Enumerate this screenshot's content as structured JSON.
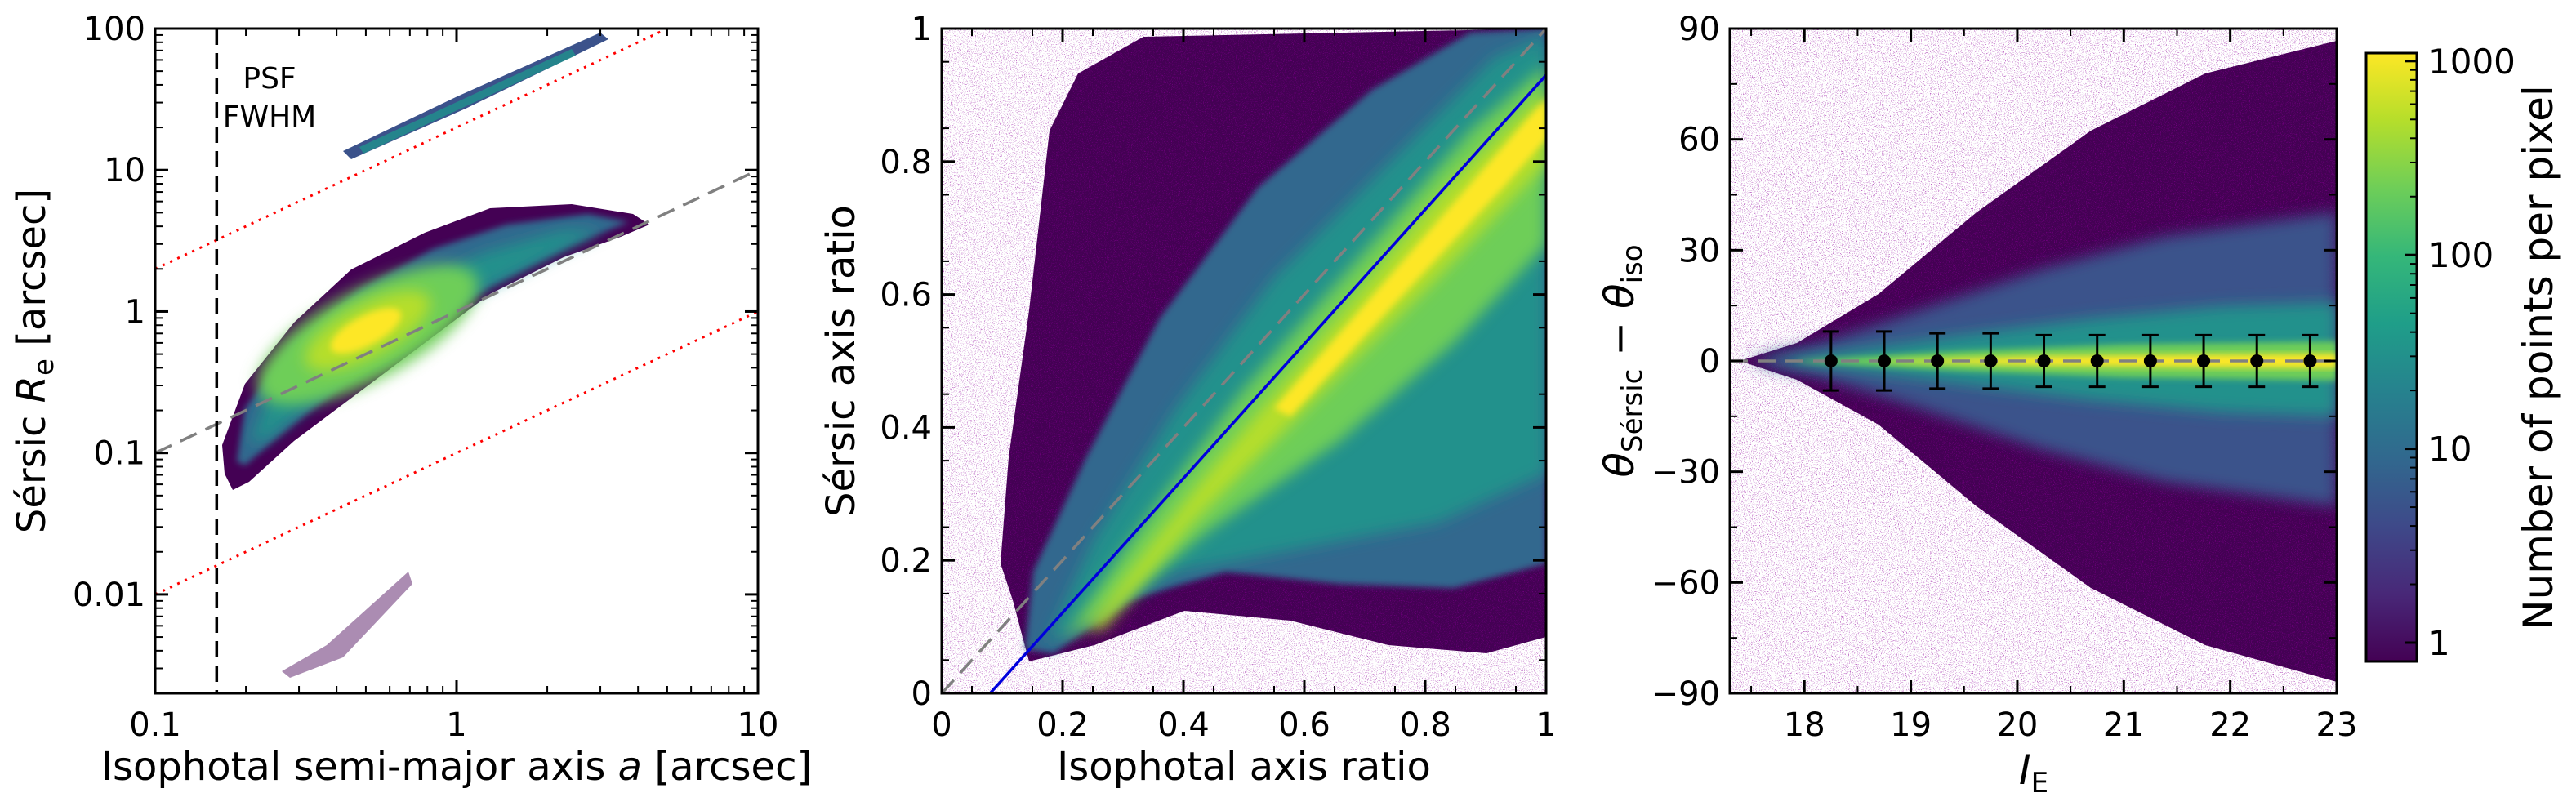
{
  "chart_data": [
    {
      "type": "heatmap",
      "panel": "left",
      "xlabel_parts": [
        "Isophotal semi-major axis ",
        "a",
        " [arcsec]"
      ],
      "ylabel_parts": [
        "Sérsic ",
        "R",
        "e",
        " [arcsec]"
      ],
      "x_scale": "log",
      "y_scale": "log",
      "xlim": [
        0.1,
        10
      ],
      "ylim": [
        0.002,
        100
      ],
      "x_ticks": [
        0.1,
        1,
        10
      ],
      "x_tick_labels": [
        "0.1",
        "1",
        "10"
      ],
      "y_ticks": [
        0.01,
        0.1,
        1,
        10,
        100
      ],
      "y_tick_labels": [
        "0.01",
        "0.1",
        "1",
        "10",
        "100"
      ],
      "annotation_lines": [
        "PSF",
        "FWHM"
      ],
      "psf_fwhm_a": 0.16,
      "lines": [
        {
          "style": "dashed",
          "color": "#808080",
          "relation": "y = x"
        },
        {
          "style": "dotted",
          "color": "#ff0000",
          "relation": "y = 20x"
        },
        {
          "style": "dotted",
          "color": "#ff0000",
          "relation": "y = 0.1x"
        }
      ],
      "density_ridge": {
        "x": [
          0.18,
          0.3,
          0.5,
          0.8,
          1.2,
          2.0,
          3.0
        ],
        "y": [
          0.1,
          0.3,
          0.5,
          0.9,
          1.4,
          2.4,
          4.0
        ]
      }
    },
    {
      "type": "heatmap",
      "panel": "middle",
      "xlabel": "Isophotal axis ratio",
      "ylabel": "Sérsic axis ratio",
      "xlim": [
        0,
        1
      ],
      "ylim": [
        0,
        1
      ],
      "x_ticks": [
        0,
        0.2,
        0.4,
        0.6,
        0.8,
        1
      ],
      "x_tick_labels": [
        "0",
        "0.2",
        "0.4",
        "0.6",
        "0.8",
        "1"
      ],
      "y_ticks": [
        0,
        0.2,
        0.4,
        0.6,
        0.8,
        1
      ],
      "y_tick_labels": [
        "0",
        "0.2",
        "0.4",
        "0.6",
        "0.8",
        "1"
      ],
      "lines": [
        {
          "style": "dashed",
          "color": "#808080",
          "points": [
            [
              0,
              0
            ],
            [
              1,
              1
            ]
          ]
        },
        {
          "style": "solid",
          "color": "#0000dd",
          "points": [
            [
              0.08,
              0
            ],
            [
              1,
              0.93
            ]
          ]
        }
      ]
    },
    {
      "type": "heatmap",
      "panel": "right",
      "xlabel_parts": [
        "I",
        "E"
      ],
      "ylabel_parts": [
        "θ",
        "Sérsic",
        " − ",
        "θ",
        "iso"
      ],
      "xlim": [
        17.3,
        23
      ],
      "ylim": [
        -90,
        90
      ],
      "x_ticks": [
        18,
        19,
        20,
        21,
        22,
        23
      ],
      "x_tick_labels": [
        "18",
        "19",
        "20",
        "21",
        "22",
        "23"
      ],
      "y_ticks": [
        -90,
        -60,
        -30,
        0,
        30,
        60,
        90
      ],
      "y_tick_labels": [
        "−90",
        "−60",
        "−30",
        "0",
        "30",
        "60",
        "90"
      ],
      "reference_line": {
        "style": "dashed",
        "color": "#808080",
        "y": 0
      },
      "binned_points": {
        "x": [
          18.25,
          18.75,
          19.25,
          19.75,
          20.25,
          20.75,
          21.25,
          21.75,
          22.25,
          22.75
        ],
        "y": [
          0,
          0,
          0,
          0,
          0,
          0,
          0,
          0,
          0,
          0
        ],
        "yerr": [
          8,
          8,
          7.5,
          7.5,
          7,
          7,
          7,
          7,
          7,
          7
        ]
      },
      "colorbar": {
        "label": "Number of points per pixel",
        "scale": "log",
        "range": [
          0.8,
          1100
        ],
        "ticks": [
          1,
          10,
          100,
          1000
        ],
        "tick_labels": [
          "1",
          "10",
          "100",
          "1000"
        ],
        "colormap": [
          "#440154",
          "#482878",
          "#3e4989",
          "#31688e",
          "#26828e",
          "#1f9e89",
          "#35b779",
          "#6ece58",
          "#b5de2b",
          "#fde725"
        ]
      }
    }
  ]
}
